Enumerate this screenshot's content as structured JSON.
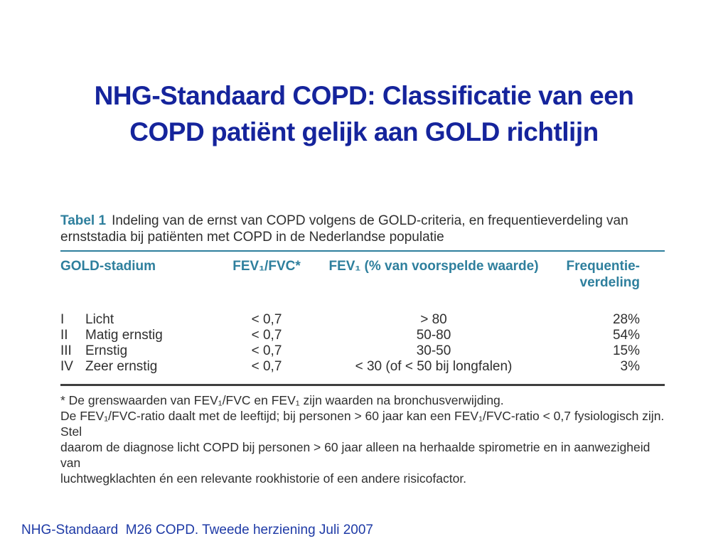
{
  "slide": {
    "title_line1": "NHG-Standaard COPD: Classificatie van een",
    "title_line2": "COPD patiënt gelijk aan GOLD richtlijn",
    "footer": "NHG-Standaard  M26 COPD. Tweede herziening Juli 2007"
  },
  "table": {
    "caption_label": "Tabel 1",
    "caption_text": "Indeling van de ernst van COPD volgens de GOLD-criteria, en frequentieverdeling van ernststadia bij patiënten met COPD in de Nederlandse populatie",
    "header": {
      "col1": "GOLD-stadium",
      "col2": "FEV₁/FVC*",
      "col3": "FEV₁ (% van voorspelde waarde)",
      "col4_line1": "Frequentie-",
      "col4_line2": "verdeling"
    },
    "rows": [
      {
        "stadium": "I",
        "naam": "Licht",
        "fev_fvc": "< 0,7",
        "fev_pct": "> 80",
        "freq": "28%"
      },
      {
        "stadium": "II",
        "naam": "Matig ernstig",
        "fev_fvc": "< 0,7",
        "fev_pct": "50-80",
        "freq": "54%"
      },
      {
        "stadium": "III",
        "naam": "Ernstig",
        "fev_fvc": "< 0,7",
        "fev_pct": "30-50",
        "freq": "15%"
      },
      {
        "stadium": "IV",
        "naam": "Zeer ernstig",
        "fev_fvc": "< 0,7",
        "fev_pct": "< 30 (of < 50 bij longfalen)",
        "freq": "3%"
      }
    ],
    "footnote": [
      "* De grenswaarden van FEV₁/FVC en FEV₁ zijn waarden na bronchusverwijding.",
      "De FEV₁/FVC-ratio daalt met de leeftijd; bij personen > 60 jaar kan een FEV₁/FVC-ratio < 0,7 fysiologisch zijn. Stel",
      "daarom de diagnose licht COPD bij personen > 60 jaar alleen na herhaalde spirometrie en in aanwezigheid van",
      "luchtwegklachten én een relevante rookhistorie of een andere risicofactor."
    ]
  },
  "colors": {
    "title_blue": "#15249c",
    "footer_blue": "#1e3aa6",
    "teal": "#2e7f9d",
    "body_text": "#2f2f2f",
    "rule_dark": "#3f3f3f"
  }
}
